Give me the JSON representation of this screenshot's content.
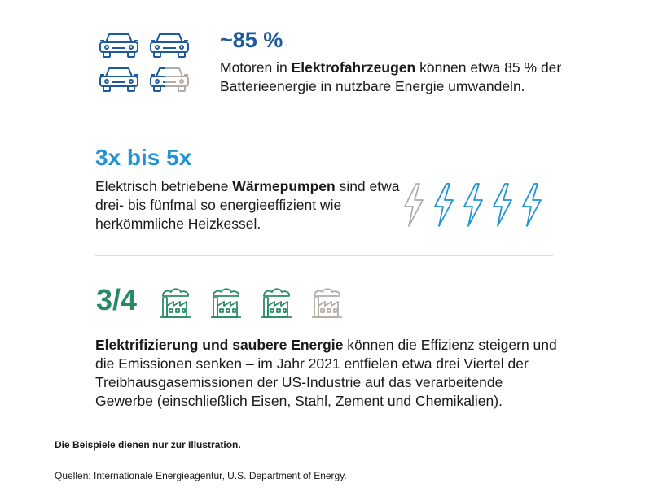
{
  "section1": {
    "title": "~85 %",
    "text_pre": "Motoren in ",
    "text_bold": "Elektrofahrzeugen",
    "text_post": " können etwa 85 % der Batterieenergie in nutzbare Energie umwandeln.",
    "icon": "car-icon",
    "icon_count": 4,
    "highlight_fraction": 0.85,
    "accent_color": "#1e5a9c",
    "muted_color": "#b3aca5"
  },
  "section2": {
    "title": "3x bis 5x",
    "text_pre": "Elektrisch betriebene ",
    "text_bold": "Wärmepumpen",
    "text_post": " sind etwa drei- bis fünfmal so energieeffizient wie herkömmliche Heizkessel.",
    "icon": "lightning-bolt-icon",
    "icon_count": 5,
    "accent_color": "#1f93d6",
    "muted_color": "#b3aca5"
  },
  "section3": {
    "title": "3/4",
    "text_bold": "Elektrifizierung und saubere Energie",
    "text_post": " können die Effizienz steigern und die Emissionen senken – im Jahr 2021 entfielen etwa drei Viertel der Treibhausgasemissionen der US-Industrie auf das verarbeitende Gewerbe (einschließlich Eisen, Stahl, Zement und Chemikalien).",
    "icon": "factory-icon",
    "icon_count": 4,
    "highlight_count": 3,
    "accent_color": "#2a8b63",
    "muted_color": "#b3aca5"
  },
  "footer": {
    "disclaimer": "Die Beispiele dienen nur zur Illustration.",
    "sources": "Quellen: Internationale Energieagentur, U.S. Department of Energy."
  }
}
